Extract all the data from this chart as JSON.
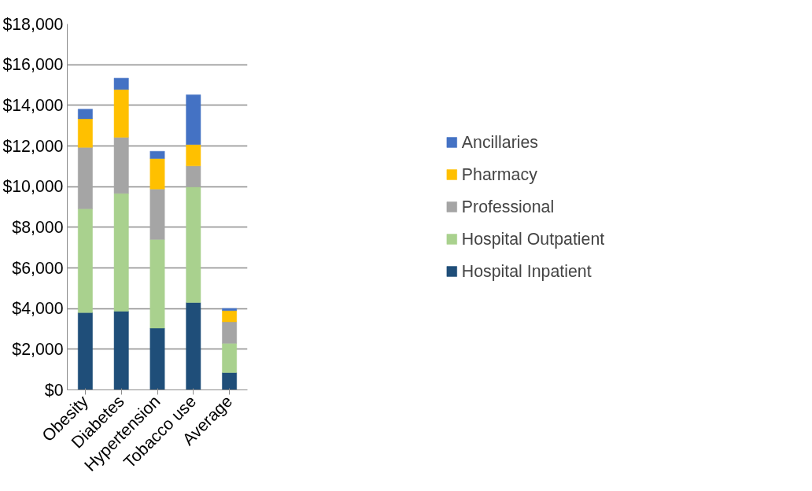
{
  "chart_data": {
    "type": "bar",
    "stacked": true,
    "categories": [
      "Obesity",
      "Diabetes",
      "Hypertension",
      "Tobacco use",
      "Average"
    ],
    "series": [
      {
        "name": "Hospital Inpatient",
        "color": "#1f4e79",
        "values": [
          3800,
          3870,
          3040,
          4300,
          850
        ]
      },
      {
        "name": "Hospital Outpatient",
        "color": "#a9d18e",
        "values": [
          5110,
          5800,
          4360,
          5690,
          1440
        ]
      },
      {
        "name": "Professional",
        "color": "#a5a5a5",
        "values": [
          3020,
          2760,
          2480,
          1030,
          1060
        ]
      },
      {
        "name": "Pharmacy",
        "color": "#ffc000",
        "values": [
          1410,
          2350,
          1500,
          1050,
          550
        ]
      },
      {
        "name": "Ancillaries",
        "color": "#4472c4",
        "values": [
          470,
          560,
          360,
          2450,
          110
        ]
      }
    ],
    "ylim": [
      0,
      18000
    ],
    "yticks": [
      {
        "value": 0,
        "label": "$0"
      },
      {
        "value": 2000,
        "label": "$2,000"
      },
      {
        "value": 4000,
        "label": "$4,000"
      },
      {
        "value": 6000,
        "label": "$6,000"
      },
      {
        "value": 8000,
        "label": "$8,000"
      },
      {
        "value": 10000,
        "label": "$10,000"
      },
      {
        "value": 12000,
        "label": "$12,000"
      },
      {
        "value": 14000,
        "label": "$14,000"
      },
      {
        "value": 16000,
        "label": "$16,000"
      },
      {
        "value": 18000,
        "label": "$18,000"
      }
    ],
    "grid": "y",
    "legend": "right"
  }
}
